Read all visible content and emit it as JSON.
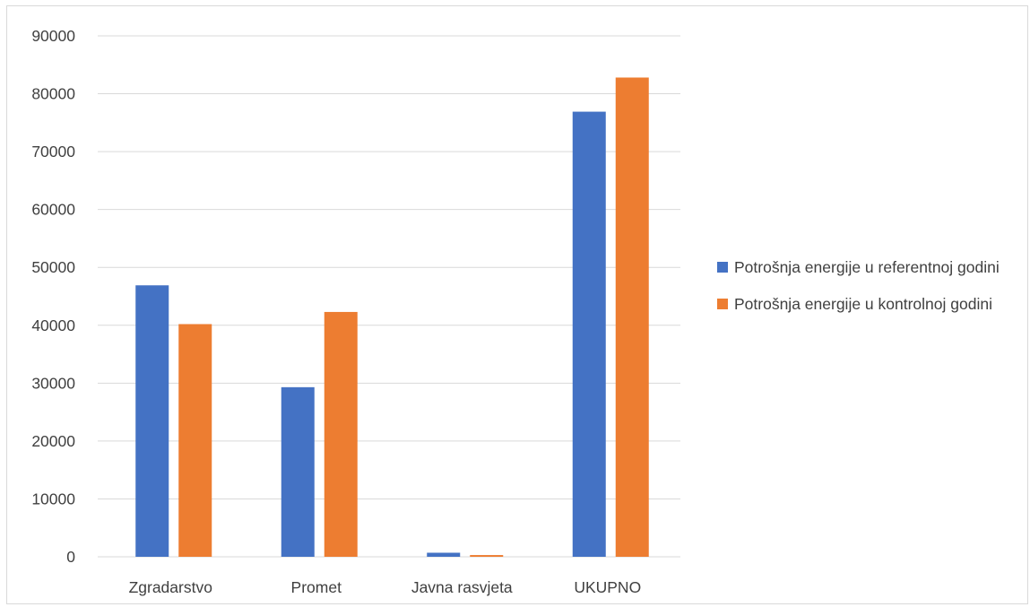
{
  "chart_data": {
    "type": "bar",
    "title": "",
    "xlabel": "",
    "ylabel": "",
    "categories": [
      "Zgradarstvo",
      "Promet",
      "Javna rasvjeta",
      "UKUPNO"
    ],
    "series": [
      {
        "name": "Potrošnja energije u referentnoj godini",
        "color": "#4472c4",
        "values": [
          46900,
          29300,
          700,
          76900
        ]
      },
      {
        "name": "Potrošnja energije u kontrolnoj godini",
        "color": "#ed7d31",
        "values": [
          40200,
          42300,
          300,
          82800
        ]
      }
    ],
    "ylim": [
      0,
      90000
    ],
    "yticks": [
      "0",
      "10000",
      "20000",
      "30000",
      "40000",
      "50000",
      "60000",
      "70000",
      "80000",
      "90000"
    ],
    "grid": true,
    "legend_position": "right"
  }
}
